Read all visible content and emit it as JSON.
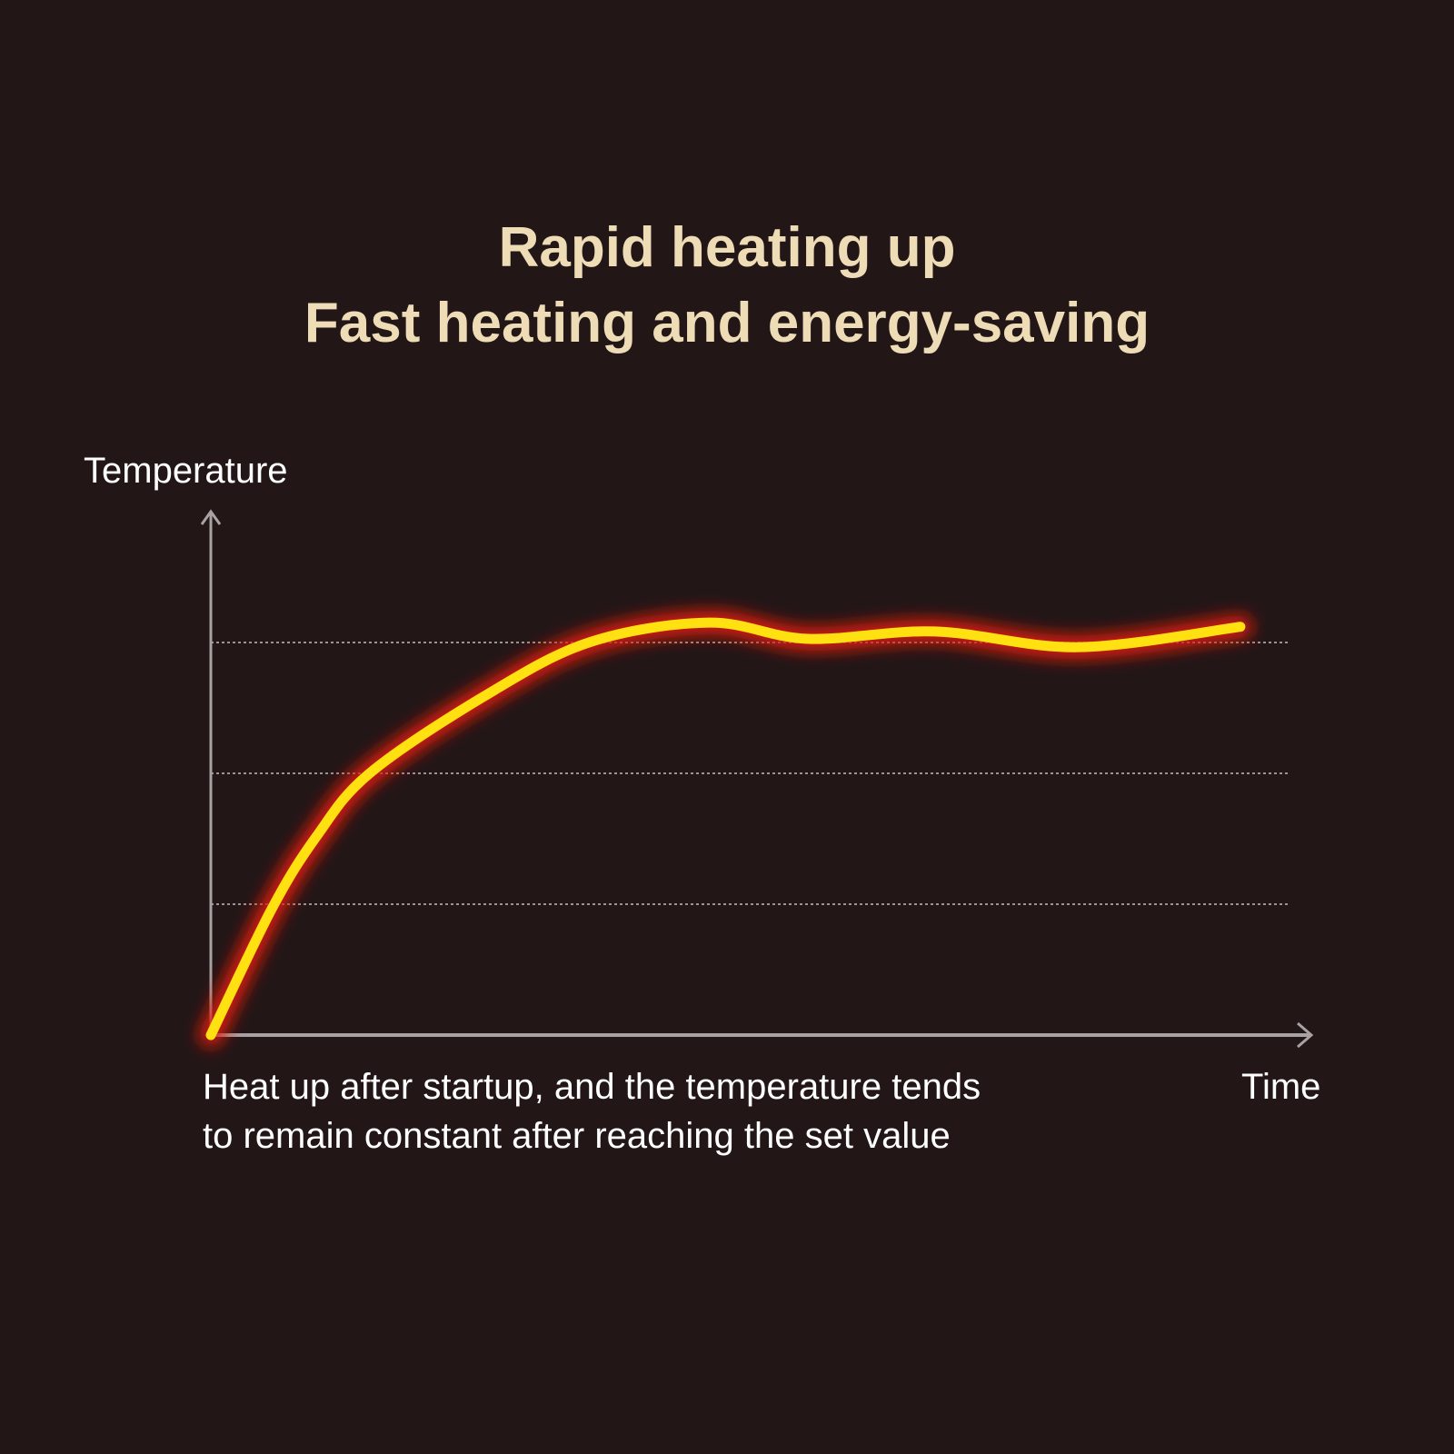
{
  "title_lines": [
    "Rapid heating up",
    "Fast heating and energy-saving"
  ],
  "caption_lines": [
    "Heat up after startup, and the temperature tends",
    "to remain constant after reaching the set value"
  ],
  "colors": {
    "background": "#221617",
    "title": "#eedcb6",
    "curve": "#ffe010",
    "glow": "#e01a0a",
    "axis": "#a8a2a2",
    "grid": "#9a9494"
  },
  "chart_data": {
    "type": "line",
    "title": "Rapid heating up / Fast heating and energy-saving",
    "xlabel": "Time",
    "ylabel": "Temperature",
    "xlim": [
      0,
      1
    ],
    "ylim": [
      0,
      1
    ],
    "grid": "horizontal dotted",
    "gridlines_y": [
      0.25,
      0.5,
      0.75
    ],
    "series": [
      {
        "x": [
          0,
          0.055,
          0.096,
          0.144,
          0.247,
          0.343,
          0.452,
          0.541,
          0.657,
          0.787,
          0.934
        ],
        "y": [
          0,
          0.24,
          0.38,
          0.5,
          0.646,
          0.75,
          0.788,
          0.757,
          0.771,
          0.741,
          0.78
        ]
      }
    ]
  }
}
